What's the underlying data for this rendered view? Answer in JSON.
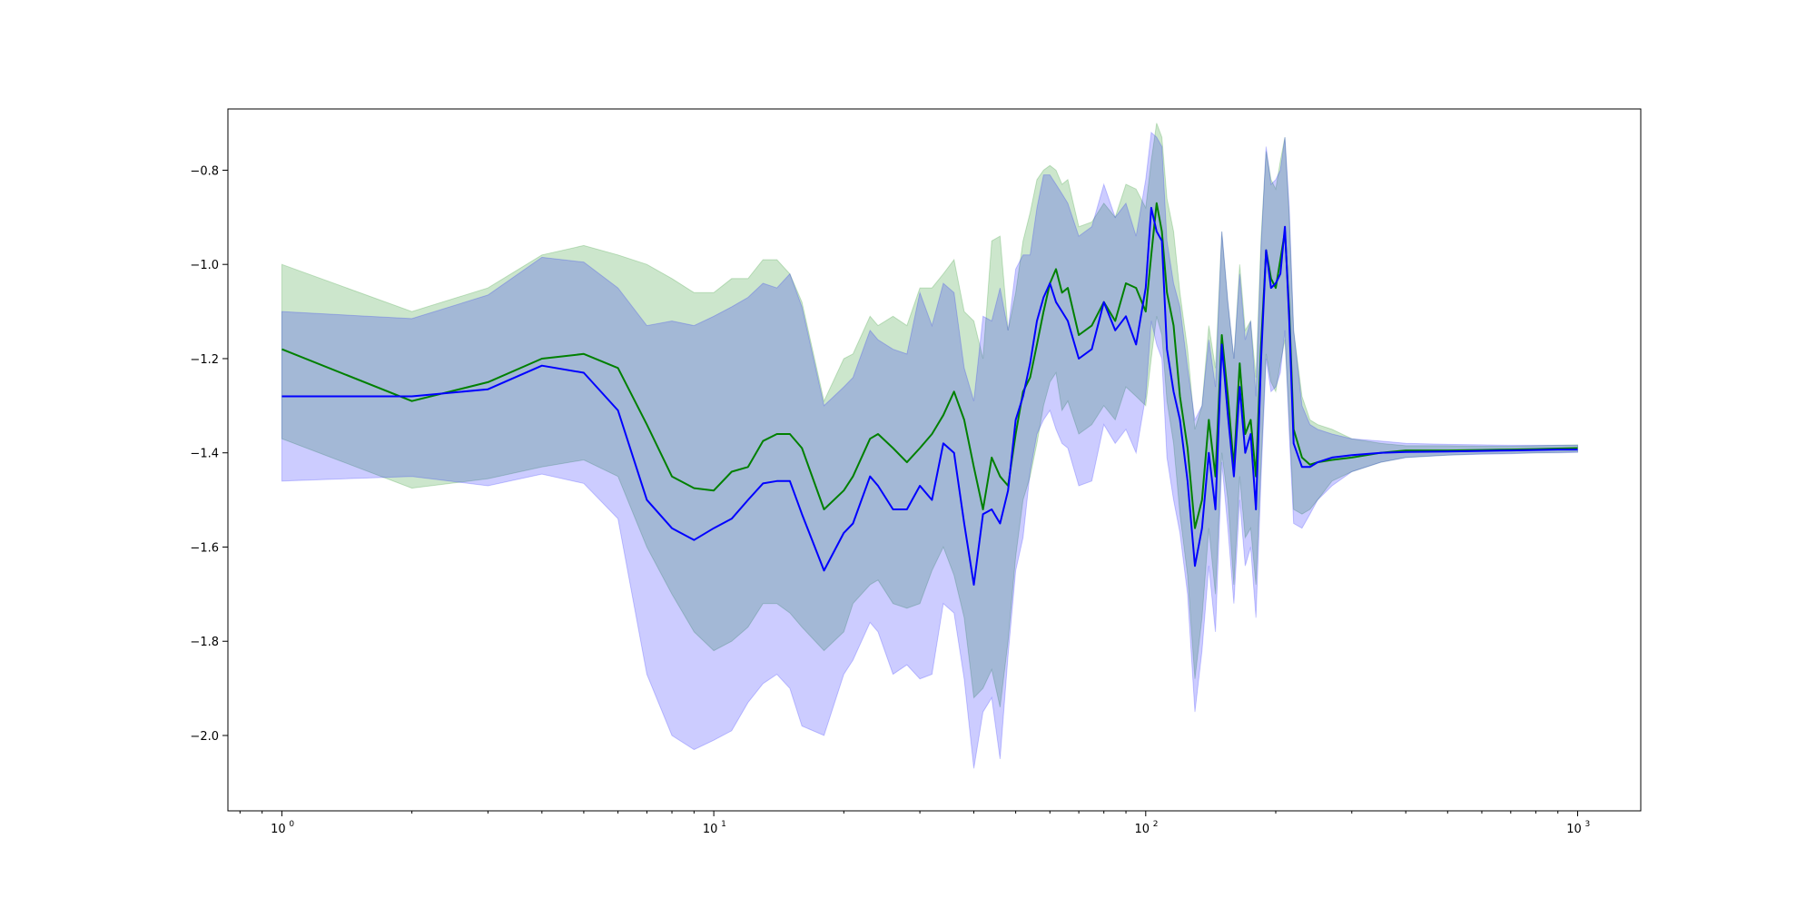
{
  "chart_data": {
    "type": "line",
    "title": "",
    "xlabel": "",
    "ylabel": "",
    "xscale": "log",
    "xlim": [
      0.75,
      1400
    ],
    "ylim": [
      -2.16,
      -0.67
    ],
    "grid": false,
    "legend": "none",
    "x_ticks": [
      {
        "base": "10",
        "exp": "0",
        "value": 1
      },
      {
        "base": "10",
        "exp": "1",
        "value": 10
      },
      {
        "base": "10",
        "exp": "2",
        "value": 100
      },
      {
        "base": "10",
        "exp": "3",
        "value": 1000
      }
    ],
    "y_ticks": [
      {
        "label": "−2.0",
        "value": -2.0
      },
      {
        "label": "−1.8",
        "value": -1.8
      },
      {
        "label": "−1.6",
        "value": -1.6
      },
      {
        "label": "−1.4",
        "value": -1.4
      },
      {
        "label": "−1.2",
        "value": -1.2
      },
      {
        "label": "−1.0",
        "value": -1.0
      },
      {
        "label": "−0.8",
        "value": -0.8
      }
    ],
    "series": [
      {
        "color": "#008000",
        "band_color": "#008000",
        "band_opacity": 0.2,
        "x": [
          1,
          2,
          3,
          4,
          5,
          6,
          7,
          8,
          9,
          10,
          11,
          12,
          13,
          14,
          15,
          16,
          18,
          20,
          21,
          23,
          24,
          26,
          28,
          30,
          32,
          34,
          36,
          38,
          40,
          42,
          44,
          46,
          48,
          50,
          52,
          54,
          56,
          58,
          60,
          62,
          64,
          66,
          70,
          75,
          80,
          85,
          90,
          95,
          100,
          103,
          106,
          109,
          112,
          116,
          120,
          125,
          130,
          135,
          140,
          145,
          150,
          155,
          160,
          165,
          170,
          175,
          180,
          185,
          190,
          195,
          200,
          205,
          210,
          215,
          220,
          230,
          240,
          250,
          270,
          300,
          350,
          400,
          500,
          600,
          700,
          800,
          900,
          1000
        ],
        "y": [
          -1.18,
          -1.29,
          -1.25,
          -1.2,
          -1.19,
          -1.22,
          -1.34,
          -1.45,
          -1.475,
          -1.48,
          -1.44,
          -1.43,
          -1.375,
          -1.36,
          -1.36,
          -1.39,
          -1.52,
          -1.48,
          -1.45,
          -1.37,
          -1.36,
          -1.39,
          -1.42,
          -1.39,
          -1.36,
          -1.32,
          -1.27,
          -1.33,
          -1.43,
          -1.52,
          -1.41,
          -1.45,
          -1.47,
          -1.36,
          -1.27,
          -1.24,
          -1.17,
          -1.1,
          -1.04,
          -1.01,
          -1.06,
          -1.05,
          -1.15,
          -1.13,
          -1.08,
          -1.12,
          -1.04,
          -1.05,
          -1.1,
          -0.98,
          -0.87,
          -0.93,
          -1.06,
          -1.13,
          -1.28,
          -1.39,
          -1.56,
          -1.5,
          -1.33,
          -1.45,
          -1.15,
          -1.28,
          -1.43,
          -1.21,
          -1.36,
          -1.33,
          -1.45,
          -1.17,
          -0.97,
          -1.03,
          -1.05,
          -0.99,
          -0.93,
          -1.1,
          -1.35,
          -1.41,
          -1.425,
          -1.42,
          -1.415,
          -1.41,
          -1.4,
          -1.395,
          -1.395,
          -1.394,
          -1.393,
          -1.392,
          -1.391,
          -1.39
        ],
        "lower": [
          -1.37,
          -1.475,
          -1.455,
          -1.43,
          -1.415,
          -1.45,
          -1.6,
          -1.7,
          -1.78,
          -1.82,
          -1.8,
          -1.77,
          -1.72,
          -1.72,
          -1.74,
          -1.77,
          -1.82,
          -1.78,
          -1.72,
          -1.68,
          -1.67,
          -1.72,
          -1.73,
          -1.72,
          -1.65,
          -1.6,
          -1.66,
          -1.75,
          -1.92,
          -1.9,
          -1.86,
          -1.94,
          -1.8,
          -1.62,
          -1.5,
          -1.45,
          -1.38,
          -1.3,
          -1.25,
          -1.23,
          -1.31,
          -1.29,
          -1.36,
          -1.34,
          -1.3,
          -1.33,
          -1.26,
          -1.28,
          -1.3,
          -1.2,
          -1.11,
          -1.15,
          -1.29,
          -1.38,
          -1.53,
          -1.66,
          -1.88,
          -1.75,
          -1.56,
          -1.7,
          -1.4,
          -1.5,
          -1.68,
          -1.45,
          -1.58,
          -1.56,
          -1.68,
          -1.42,
          -1.19,
          -1.25,
          -1.27,
          -1.21,
          -1.16,
          -1.33,
          -1.52,
          -1.53,
          -1.52,
          -1.5,
          -1.46,
          -1.44,
          -1.42,
          -1.41,
          -1.405,
          -1.402,
          -1.401,
          -1.4,
          -1.399,
          -1.398
        ],
        "upper": [
          -1.0,
          -1.1,
          -1.05,
          -0.98,
          -0.96,
          -0.98,
          -1.0,
          -1.03,
          -1.06,
          -1.06,
          -1.03,
          -1.03,
          -0.99,
          -0.99,
          -1.02,
          -1.08,
          -1.29,
          -1.2,
          -1.19,
          -1.11,
          -1.13,
          -1.11,
          -1.13,
          -1.05,
          -1.05,
          -1.02,
          -0.99,
          -1.1,
          -1.12,
          -1.2,
          -0.95,
          -0.94,
          -1.14,
          -1.06,
          -0.95,
          -0.89,
          -0.82,
          -0.8,
          -0.79,
          -0.8,
          -0.83,
          -0.82,
          -0.92,
          -0.91,
          -0.87,
          -0.9,
          -0.83,
          -0.84,
          -0.88,
          -0.78,
          -0.7,
          -0.73,
          -0.86,
          -0.93,
          -1.06,
          -1.18,
          -1.35,
          -1.3,
          -1.13,
          -1.22,
          -0.93,
          -1.08,
          -1.2,
          -1.0,
          -1.14,
          -1.12,
          -1.24,
          -0.94,
          -0.76,
          -0.82,
          -0.84,
          -0.78,
          -0.73,
          -0.9,
          -1.14,
          -1.28,
          -1.33,
          -1.34,
          -1.35,
          -1.37,
          -1.38,
          -1.385,
          -1.385,
          -1.386,
          -1.386,
          -1.385,
          -1.384,
          -1.383
        ]
      },
      {
        "color": "#0000ff",
        "band_color": "#0000ff",
        "band_opacity": 0.2,
        "x": [
          1,
          2,
          3,
          4,
          5,
          6,
          7,
          8,
          9,
          10,
          11,
          12,
          13,
          14,
          15,
          16,
          18,
          20,
          21,
          23,
          24,
          26,
          28,
          30,
          32,
          34,
          36,
          38,
          40,
          42,
          44,
          46,
          48,
          50,
          52,
          54,
          56,
          58,
          60,
          62,
          64,
          66,
          70,
          75,
          80,
          85,
          90,
          95,
          100,
          103,
          106,
          109,
          112,
          116,
          120,
          125,
          130,
          135,
          140,
          145,
          150,
          155,
          160,
          165,
          170,
          175,
          180,
          185,
          190,
          195,
          200,
          205,
          210,
          215,
          220,
          230,
          240,
          250,
          270,
          300,
          350,
          400,
          500,
          600,
          700,
          800,
          900,
          1000
        ],
        "y": [
          -1.28,
          -1.28,
          -1.265,
          -1.215,
          -1.23,
          -1.31,
          -1.5,
          -1.56,
          -1.585,
          -1.56,
          -1.54,
          -1.5,
          -1.465,
          -1.46,
          -1.46,
          -1.53,
          -1.65,
          -1.57,
          -1.55,
          -1.45,
          -1.47,
          -1.52,
          -1.52,
          -1.47,
          -1.5,
          -1.38,
          -1.4,
          -1.55,
          -1.68,
          -1.53,
          -1.52,
          -1.55,
          -1.48,
          -1.33,
          -1.28,
          -1.21,
          -1.12,
          -1.07,
          -1.04,
          -1.08,
          -1.1,
          -1.12,
          -1.2,
          -1.18,
          -1.08,
          -1.14,
          -1.11,
          -1.17,
          -1.05,
          -0.88,
          -0.93,
          -0.95,
          -1.18,
          -1.27,
          -1.33,
          -1.46,
          -1.64,
          -1.56,
          -1.4,
          -1.52,
          -1.17,
          -1.32,
          -1.45,
          -1.26,
          -1.4,
          -1.36,
          -1.52,
          -1.2,
          -0.97,
          -1.05,
          -1.04,
          -1.02,
          -0.92,
          -1.12,
          -1.38,
          -1.43,
          -1.43,
          -1.42,
          -1.41,
          -1.405,
          -1.4,
          -1.398,
          -1.397,
          -1.396,
          -1.395,
          -1.394,
          -1.393,
          -1.393
        ],
        "lower": [
          -1.46,
          -1.45,
          -1.47,
          -1.445,
          -1.465,
          -1.54,
          -1.87,
          -2.0,
          -2.03,
          -2.01,
          -1.99,
          -1.93,
          -1.89,
          -1.87,
          -1.9,
          -1.98,
          -2.0,
          -1.87,
          -1.84,
          -1.76,
          -1.78,
          -1.87,
          -1.85,
          -1.88,
          -1.87,
          -1.72,
          -1.74,
          -1.88,
          -2.07,
          -1.95,
          -1.92,
          -2.05,
          -1.83,
          -1.65,
          -1.58,
          -1.44,
          -1.36,
          -1.33,
          -1.31,
          -1.35,
          -1.38,
          -1.39,
          -1.47,
          -1.46,
          -1.34,
          -1.38,
          -1.35,
          -1.4,
          -1.28,
          -1.12,
          -1.17,
          -1.2,
          -1.41,
          -1.5,
          -1.57,
          -1.7,
          -1.95,
          -1.82,
          -1.64,
          -1.78,
          -1.42,
          -1.56,
          -1.72,
          -1.5,
          -1.64,
          -1.6,
          -1.75,
          -1.45,
          -1.2,
          -1.27,
          -1.26,
          -1.23,
          -1.14,
          -1.36,
          -1.55,
          -1.56,
          -1.53,
          -1.5,
          -1.47,
          -1.44,
          -1.42,
          -1.41,
          -1.405,
          -1.403,
          -1.402,
          -1.4,
          -1.4,
          -1.399
        ],
        "upper": [
          -1.1,
          -1.115,
          -1.065,
          -0.985,
          -0.995,
          -1.05,
          -1.13,
          -1.12,
          -1.13,
          -1.11,
          -1.09,
          -1.07,
          -1.04,
          -1.05,
          -1.02,
          -1.09,
          -1.3,
          -1.26,
          -1.24,
          -1.14,
          -1.16,
          -1.18,
          -1.19,
          -1.06,
          -1.13,
          -1.04,
          -1.06,
          -1.22,
          -1.29,
          -1.11,
          -1.12,
          -1.05,
          -1.14,
          -1.01,
          -0.98,
          -0.98,
          -0.88,
          -0.81,
          -0.81,
          -0.83,
          -0.85,
          -0.87,
          -0.94,
          -0.92,
          -0.83,
          -0.9,
          -0.87,
          -0.94,
          -0.82,
          -0.72,
          -0.73,
          -0.75,
          -0.95,
          -1.04,
          -1.09,
          -1.22,
          -1.33,
          -1.3,
          -1.16,
          -1.26,
          -0.93,
          -1.08,
          -1.2,
          -1.02,
          -1.16,
          -1.12,
          -1.28,
          -0.96,
          -0.75,
          -0.83,
          -0.82,
          -0.8,
          -0.73,
          -0.88,
          -1.14,
          -1.3,
          -1.34,
          -1.35,
          -1.36,
          -1.37,
          -1.375,
          -1.38,
          -1.382,
          -1.383,
          -1.384,
          -1.384,
          -1.384,
          -1.384
        ]
      }
    ]
  }
}
